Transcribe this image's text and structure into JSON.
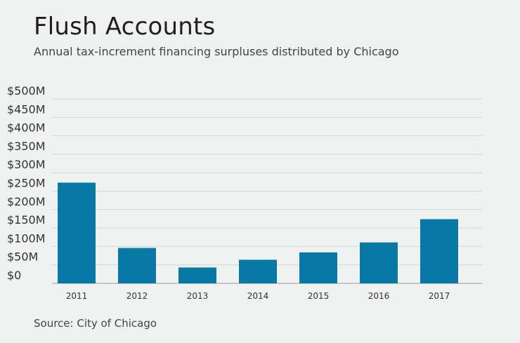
{
  "chart_data": {
    "type": "bar",
    "title": "Flush Accounts",
    "subtitle": "Annual tax-increment financing surpluses distributed by Chicago",
    "source": "Source: City of Chicago",
    "categories": [
      "2011",
      "2012",
      "2013",
      "2014",
      "2015",
      "2016",
      "2017"
    ],
    "values": [
      273,
      96,
      43,
      64,
      84,
      111,
      174
    ],
    "value_unit": "millions of dollars",
    "ylim": [
      0,
      500
    ],
    "y_ticks": [
      0,
      50,
      100,
      150,
      200,
      250,
      300,
      350,
      400,
      450,
      500
    ],
    "y_tick_labels": [
      "$0",
      "$50M",
      "$100M",
      "$150M",
      "$200M",
      "$250M",
      "$300M",
      "$350M",
      "$400M",
      "$450M",
      "$500M"
    ],
    "xlabel": "",
    "ylabel": "",
    "grid": true,
    "legend": "none",
    "colors": {
      "bar": "#0878a6",
      "grid": "#d3d6d6",
      "axis": "#9aa0a0"
    }
  }
}
